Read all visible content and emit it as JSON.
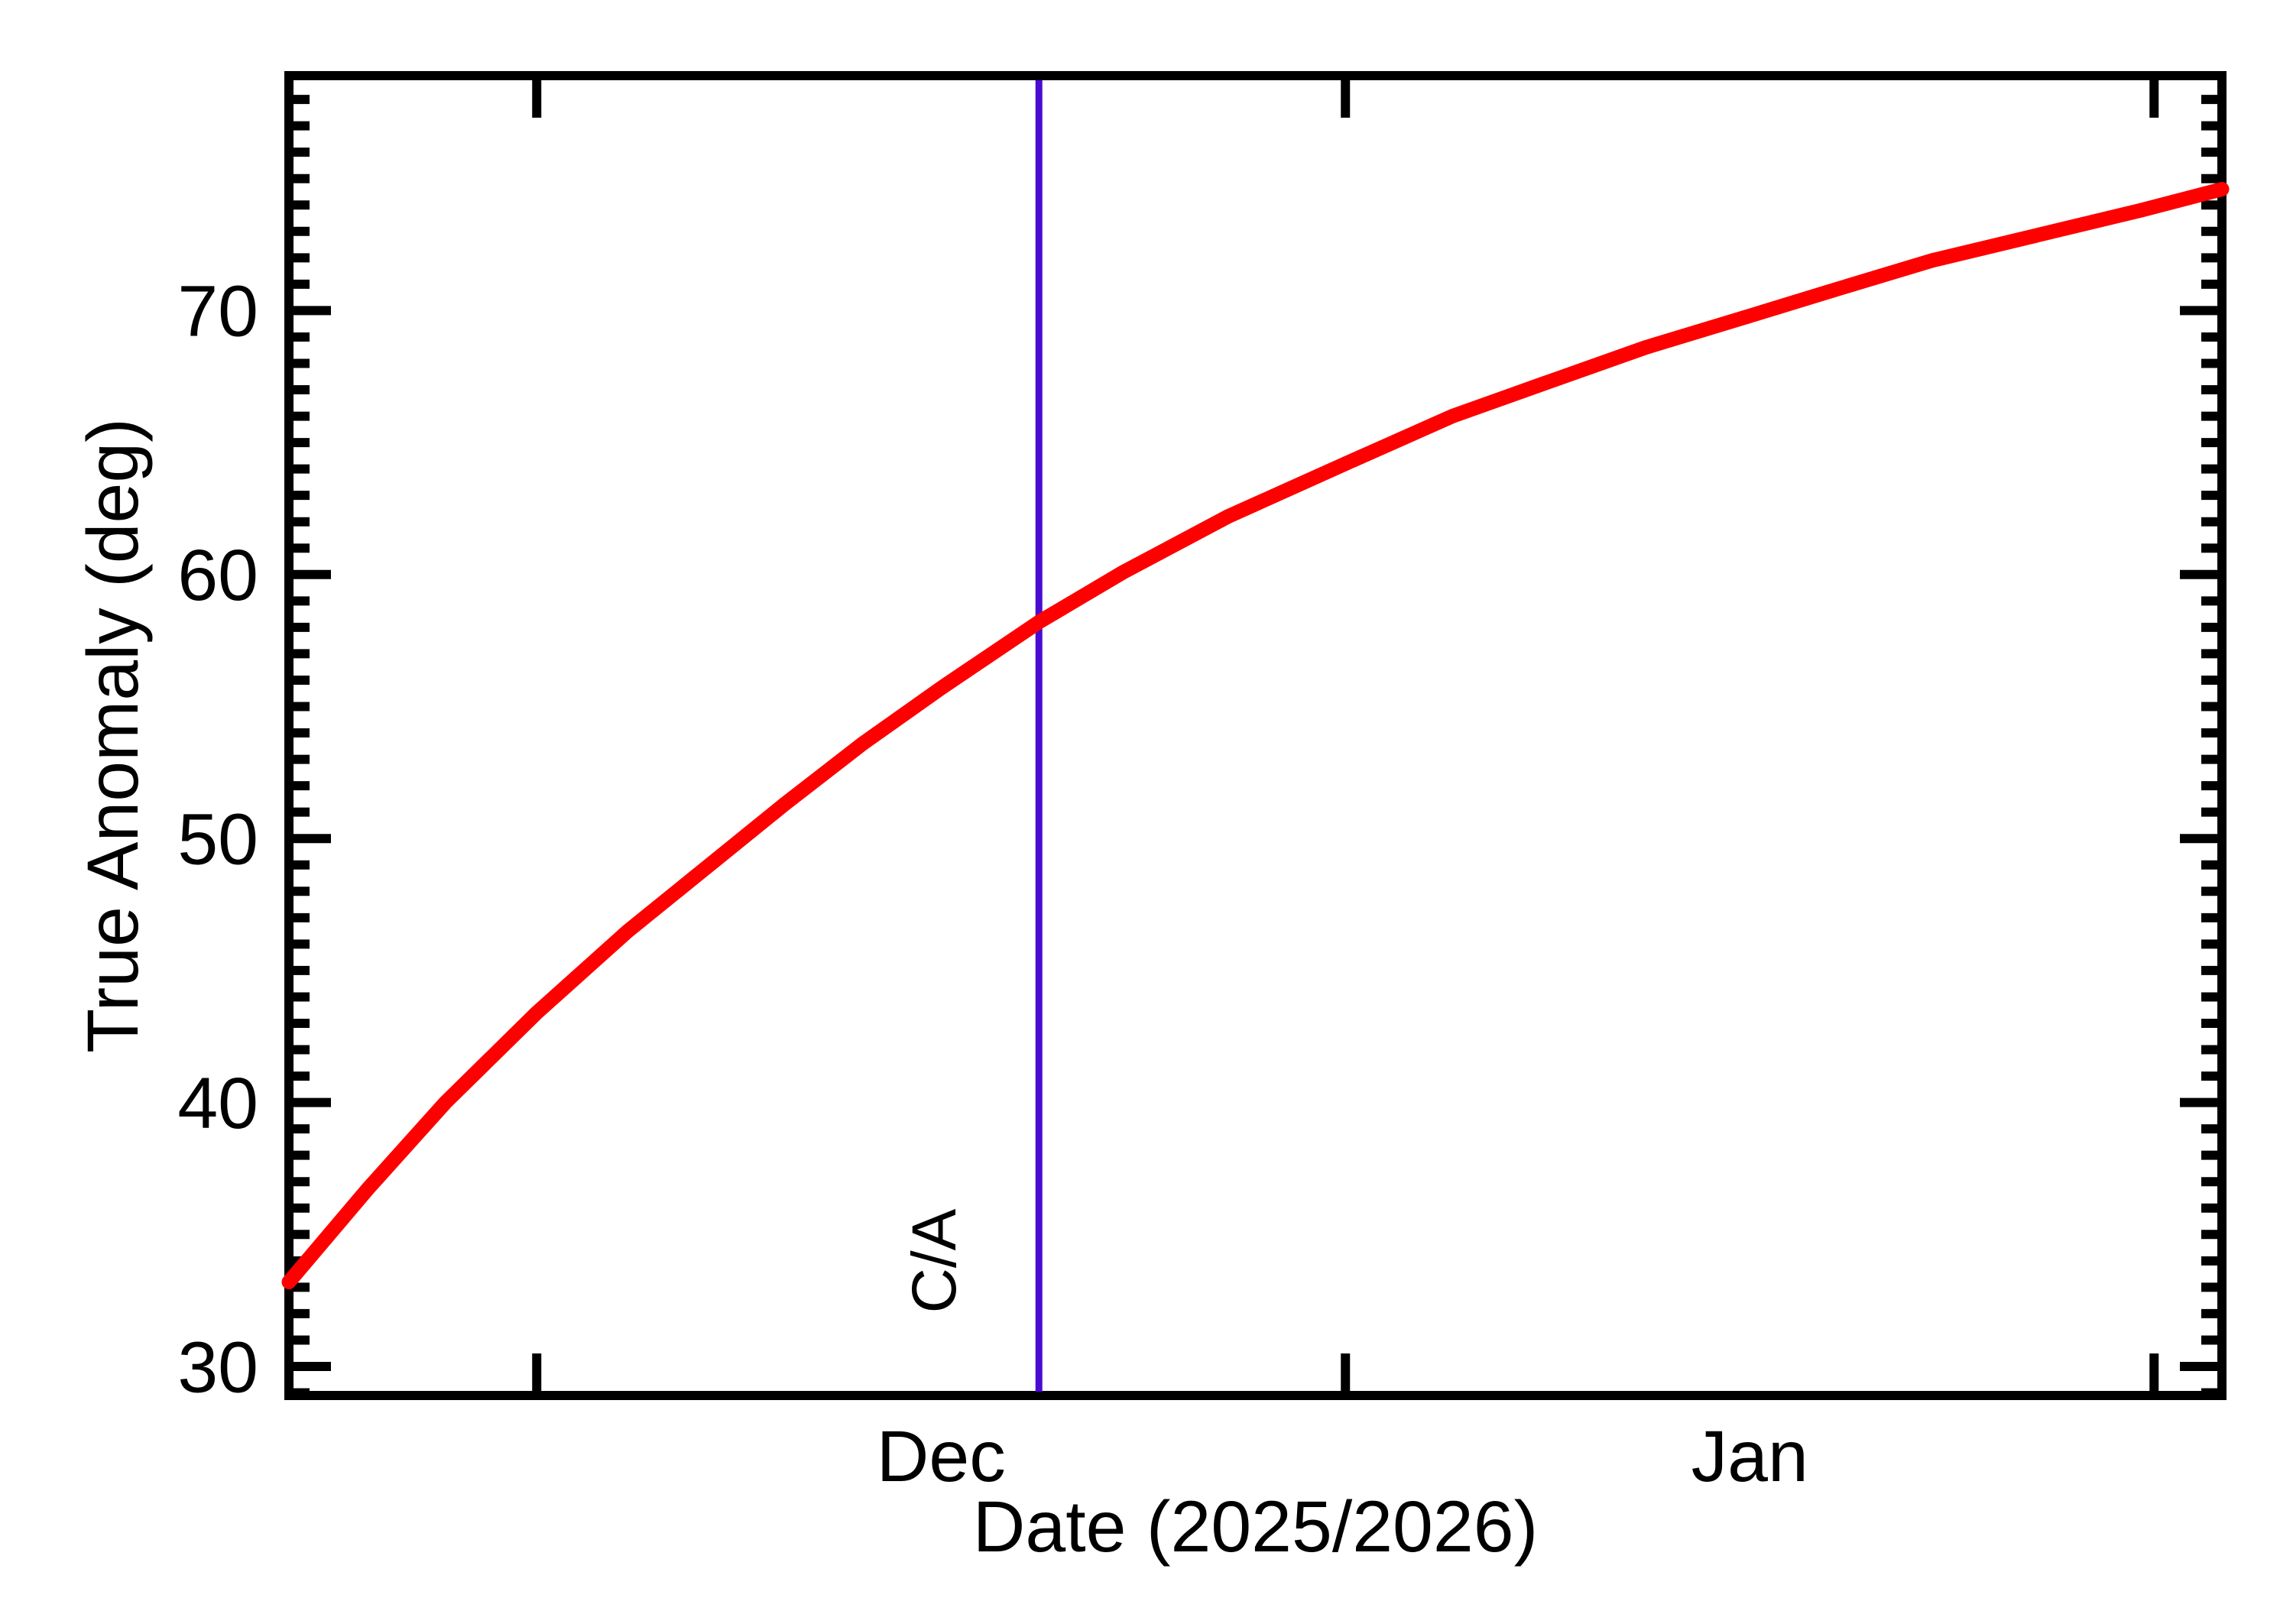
{
  "page": {
    "background": "#ffffff"
  },
  "chart_data": {
    "type": "line",
    "title": "",
    "xlabel": "Date (2025/2026)",
    "ylabel": "True Anomaly (deg)",
    "grid": false,
    "legend": null,
    "axis_color": "#000000",
    "x_axis": {
      "unit": "days from left edge (left edge ≈ Nov 21, 2025)",
      "range_days": [
        0,
        74.1
      ],
      "month_tick_days": [
        9.5,
        40.5,
        71.5
      ],
      "month_labels": [
        {
          "label": "Dec",
          "day": 25
        },
        {
          "label": "Jan",
          "day": 56
        }
      ],
      "minor_ticks": false
    },
    "y_axis": {
      "range_deg": [
        28.9,
        78.9
      ],
      "major_ticks": [
        30,
        40,
        50,
        60,
        70
      ],
      "major_tick_labels": [
        "30",
        "40",
        "50",
        "60",
        "70"
      ],
      "minor_tick_step_deg": 1
    },
    "series": [
      {
        "name": "true_anomaly",
        "color": "#ff0000",
        "stroke_width": 19,
        "points_day_deg": [
          [
            0,
            33.2
          ],
          [
            3,
            36.7
          ],
          [
            6,
            40.0
          ],
          [
            9.5,
            43.4
          ],
          [
            13,
            46.5
          ],
          [
            16,
            48.9
          ],
          [
            19,
            51.3
          ],
          [
            22,
            53.6
          ],
          [
            25,
            55.7
          ],
          [
            28.75,
            58.2
          ],
          [
            32,
            60.1
          ],
          [
            36,
            62.2
          ],
          [
            40.5,
            64.2
          ],
          [
            44.6,
            66.0
          ],
          [
            48,
            67.2
          ],
          [
            52,
            68.6
          ],
          [
            56,
            69.8
          ],
          [
            59.3,
            70.8
          ],
          [
            63,
            71.9
          ],
          [
            67,
            72.85
          ],
          [
            71,
            73.8
          ],
          [
            74.1,
            74.6
          ]
        ]
      }
    ],
    "annotations": [
      {
        "type": "vertical_line",
        "label": "C/A",
        "day": 28.75,
        "color": "#4b0bd3",
        "stroke_width": 9,
        "curve_value_at_line_deg": 58.2
      }
    ]
  }
}
